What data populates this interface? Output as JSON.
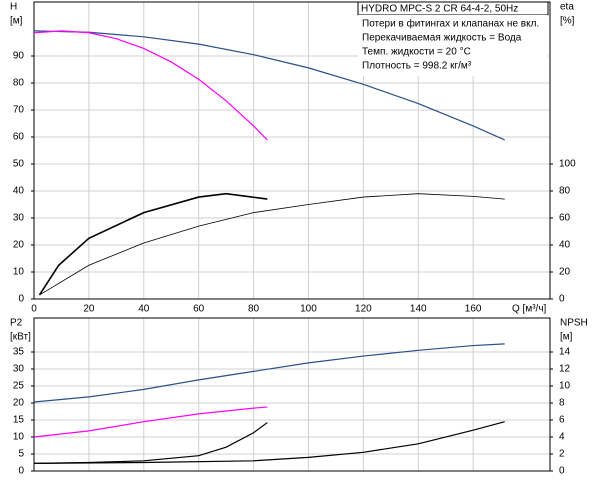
{
  "chart_data": [
    {
      "type": "line",
      "title": "HYDRO MPC-S 2 CR 64-4-2, 50Hz",
      "annotations": [
        "Потери в фитингах и клапанах не вкл.",
        "Перекачиваемая жидкость = Вода",
        "Темп. жидкости = 20 °C",
        "Плотность = 998.2 кг/м³"
      ],
      "ylabel": [
        "H",
        "[м]"
      ],
      "y2label": [
        "eta",
        "[%]"
      ],
      "xlabel": "Q [м³/ч]",
      "xlim": [
        0,
        188
      ],
      "xticks": [
        0,
        20,
        40,
        60,
        80,
        100,
        120,
        140,
        160
      ],
      "ylim": [
        0,
        110
      ],
      "yticks": [
        0,
        10,
        20,
        30,
        40,
        50,
        60,
        70,
        80,
        90
      ],
      "y2lim": [
        0,
        220
      ],
      "y2ticks": [
        0,
        20,
        40,
        60,
        80,
        100
      ],
      "grid": true,
      "series": [
        {
          "color": "#2a4f8a",
          "width": 1.2,
          "x": [
            0,
            20,
            40,
            60,
            80,
            100,
            120,
            140,
            160,
            171.5
          ],
          "values": [
            99.3,
            98.8,
            97.1,
            94.4,
            90.5,
            85.6,
            79.5,
            72.4,
            64.1,
            58.9
          ]
        },
        {
          "color": "#ff00ff",
          "width": 1.2,
          "x": [
            0,
            10,
            20,
            30,
            40,
            50,
            60,
            70,
            80,
            85
          ],
          "values": [
            98.6,
            99.3,
            98.6,
            96.4,
            92.8,
            87.8,
            81.4,
            73.4,
            64.1,
            58.9
          ]
        },
        {
          "color": "#000000",
          "width": 1.6,
          "axis": "y2",
          "x": [
            2,
            9,
            20,
            40,
            60,
            70,
            85
          ],
          "values": [
            3,
            25,
            45,
            64,
            75.5,
            78,
            74
          ]
        },
        {
          "color": "#000000",
          "width": 0.8,
          "axis": "y2",
          "x": [
            2,
            20,
            40,
            60,
            80,
            100,
            120,
            140,
            160,
            171.5
          ],
          "values": [
            3,
            25,
            41.5,
            54,
            64,
            70,
            75.5,
            78,
            76,
            74
          ]
        }
      ]
    },
    {
      "type": "line",
      "ylabel": [
        "P2",
        "[кВт]"
      ],
      "y2label": [
        "NPSH",
        "[м]"
      ],
      "ylim": [
        0,
        45
      ],
      "yticks": [
        0,
        5,
        10,
        15,
        20,
        25,
        30,
        35
      ],
      "y2lim": [
        0,
        18
      ],
      "y2ticks": [
        0,
        2,
        4,
        6,
        8,
        10,
        12,
        14
      ],
      "grid": true,
      "series": [
        {
          "color": "#2a4f8a",
          "width": 1.2,
          "x": [
            0,
            20,
            40,
            60,
            80,
            100,
            120,
            140,
            160,
            171.5
          ],
          "values": [
            20.3,
            21.8,
            24,
            26.8,
            29.3,
            31.8,
            33.8,
            35.5,
            36.9,
            37.4
          ]
        },
        {
          "color": "#ff00ff",
          "width": 1.2,
          "x": [
            0,
            20,
            40,
            60,
            80,
            85
          ],
          "values": [
            10,
            11.8,
            14.5,
            16.8,
            18.5,
            18.8
          ]
        },
        {
          "color": "#000000",
          "width": 1.2,
          "axis": "y2",
          "x": [
            0,
            20,
            40,
            60,
            70,
            80,
            85
          ],
          "values": [
            0.9,
            1.0,
            1.2,
            1.8,
            2.8,
            4.5,
            5.7
          ]
        },
        {
          "color": "#000000",
          "width": 1.2,
          "axis": "y2",
          "x": [
            0,
            40,
            80,
            100,
            120,
            140,
            160,
            171.5
          ],
          "values": [
            0.9,
            1.0,
            1.2,
            1.6,
            2.2,
            3.2,
            4.8,
            5.8
          ]
        }
      ]
    }
  ]
}
